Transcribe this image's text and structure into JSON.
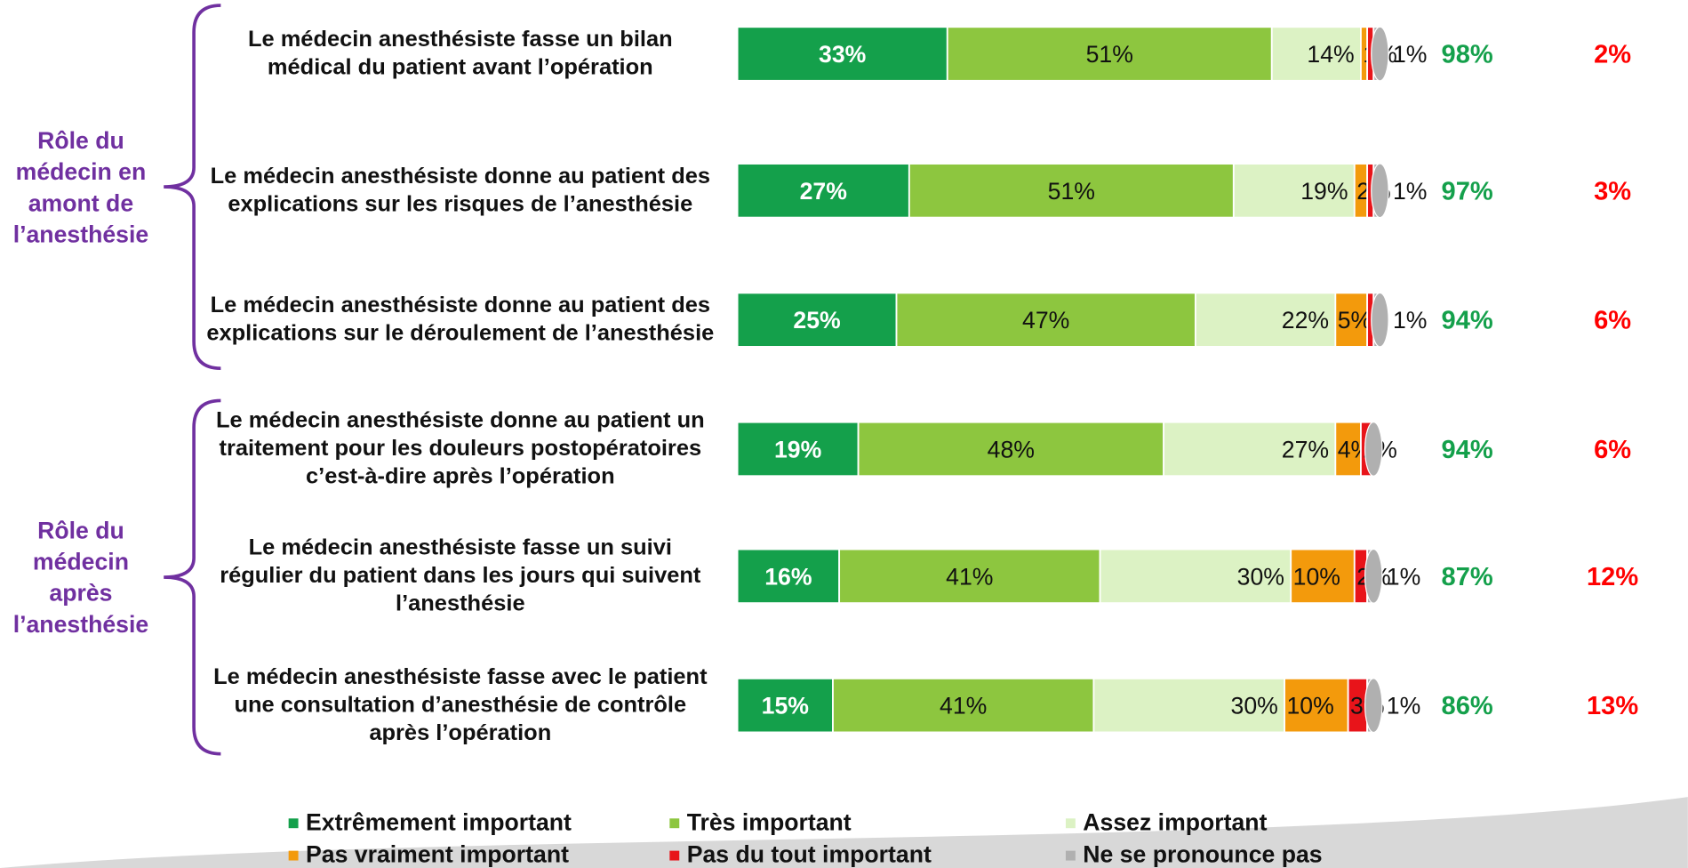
{
  "chart_data": {
    "type": "stacked_bar_horizontal",
    "categories": [
      "Le médecin anesthésiste fasse un bilan médical du patient avant l’opération",
      "Le médecin anesthésiste donne au patient des explications sur les risques de l’anesthésie",
      "Le médecin anesthésiste donne au patient des explications sur le déroulement de l’anesthésie",
      "Le médecin anesthésiste donne au patient un traitement pour les douleurs postopératoires c’est-à-dire après l’opération",
      "Le médecin anesthésiste fasse un suivi régulier du patient dans les jours qui suivent l’anesthésie",
      "Le médecin anesthésiste fasse avec le patient une consultation d’anesthésie de contrôle après l’opération"
    ],
    "groups": [
      {
        "label": "Rôle du médecin en amont de l’anesthésie",
        "rows": [
          0,
          1,
          2
        ]
      },
      {
        "label": "Rôle du médecin après l’anesthésie",
        "rows": [
          3,
          4,
          5
        ]
      }
    ],
    "series": [
      {
        "name": "Extrêmement important",
        "color": "#14a04b",
        "values": [
          33,
          27,
          25,
          19,
          16,
          15
        ],
        "value_labels": [
          "33%",
          "27%",
          "25%",
          "19%",
          "16%",
          "15%"
        ]
      },
      {
        "name": "Très important",
        "color": "#8dc63f",
        "values": [
          51,
          51,
          47,
          48,
          41,
          41
        ],
        "value_labels": [
          "51%",
          "51%",
          "47%",
          "48%",
          "41%",
          "41%"
        ]
      },
      {
        "name": "Assez important",
        "color": "#dcf2c4",
        "values": [
          14,
          19,
          22,
          27,
          30,
          30
        ],
        "value_labels": [
          "14%",
          "19%",
          "22%",
          "27%",
          "30%",
          "30%"
        ]
      },
      {
        "name": "Pas vraiment important",
        "color": "#f39a0c",
        "values": [
          1,
          2,
          5,
          4,
          10,
          10
        ],
        "value_labels": [
          "1%",
          "2%",
          "5%",
          "4%",
          "10%",
          "10%"
        ]
      },
      {
        "name": "Pas du tout important",
        "color": "#e8141a",
        "values": [
          1,
          1,
          1,
          2,
          2,
          3
        ],
        "value_labels": [
          null,
          null,
          null,
          "2%",
          "2%",
          "3%"
        ]
      },
      {
        "name": "Ne se pronounce pas",
        "color": "#b0b0b0",
        "values": [
          1,
          1,
          1,
          0,
          1,
          1
        ],
        "value_labels": [
          "1%",
          "1%",
          "1%",
          null,
          "1%",
          "1%"
        ]
      }
    ],
    "totals": [
      {
        "color": "#14a04b",
        "values": [
          98,
          97,
          94,
          94,
          87,
          86
        ],
        "value_labels": [
          "98%",
          "97%",
          "94%",
          "94%",
          "87%",
          "86%"
        ]
      },
      {
        "color": "#ff0000",
        "values": [
          2,
          3,
          6,
          6,
          12,
          13
        ],
        "value_labels": [
          "2%",
          "3%",
          "6%",
          "6%",
          "12%",
          "13%"
        ]
      }
    ],
    "xlim": [
      0,
      100
    ]
  }
}
